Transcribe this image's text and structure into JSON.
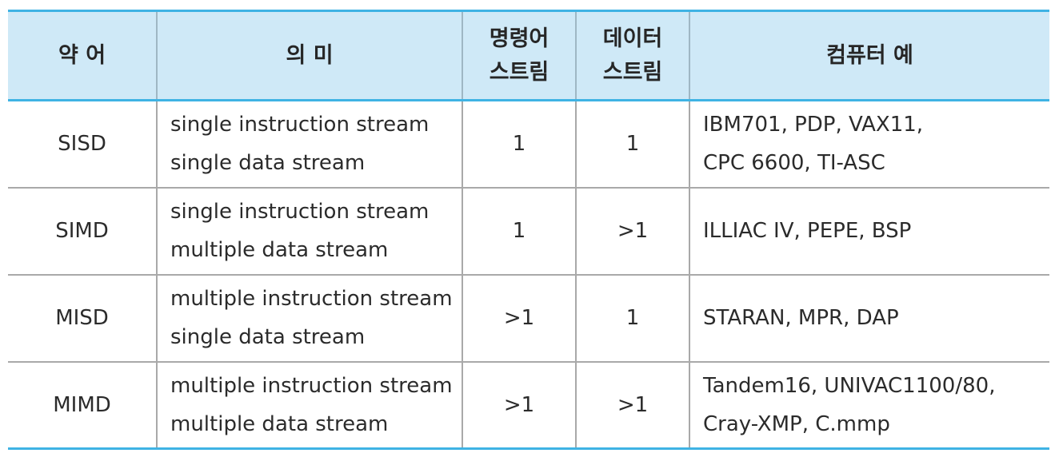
{
  "table": {
    "headers": {
      "abbr": "약 어",
      "meaning": "의 미",
      "instr_line1": "명령어",
      "instr_line2": "스트림",
      "data_line1": "데이터",
      "data_line2": "스트림",
      "examples": "컴퓨터 예"
    },
    "rows": [
      {
        "abbr": "SISD",
        "meaning_line1": "single instruction stream",
        "meaning_line2": "single data stream",
        "instr": "1",
        "data": "1",
        "examples_line1": "IBM701, PDP, VAX11,",
        "examples_line2": "CPC 6600, TI-ASC"
      },
      {
        "abbr": "SIMD",
        "meaning_line1": "single instruction stream",
        "meaning_line2": "multiple data stream",
        "instr": "1",
        "data": ">1",
        "examples_line1": "ILLIAC IV, PEPE, BSP",
        "examples_line2": ""
      },
      {
        "abbr": "MISD",
        "meaning_line1": "multiple instruction stream",
        "meaning_line2": "single data stream",
        "instr": ">1",
        "data": "1",
        "examples_line1": "STARAN, MPR, DAP",
        "examples_line2": ""
      },
      {
        "abbr": "MIMD",
        "meaning_line1": "multiple instruction stream",
        "meaning_line2": "multiple data stream",
        "instr": ">1",
        "data": ">1",
        "examples_line1": "Tandem16, UNIVAC1100/80,",
        "examples_line2": "Cray-XMP, C.mmp"
      }
    ]
  }
}
